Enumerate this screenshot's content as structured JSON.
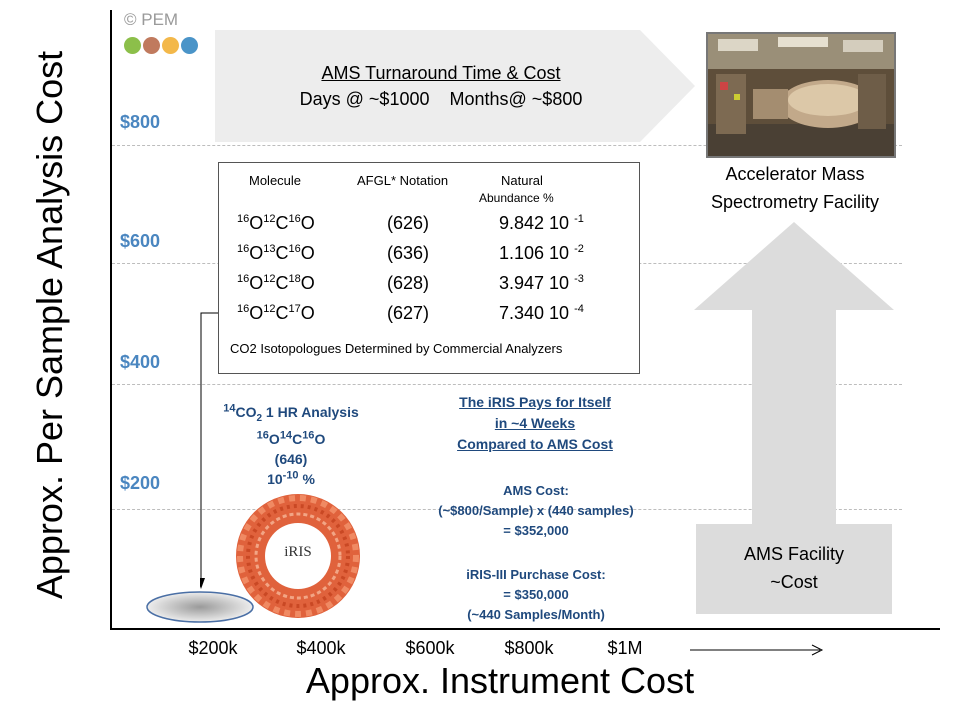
{
  "copyright": "© PEM",
  "logo_dot_colors": [
    "#8cbf4a",
    "#c07a5e",
    "#f3b84a",
    "#4a94c8"
  ],
  "y_axis": {
    "label": "Approx. Per Sample Analysis Cost",
    "ticks": [
      "$800",
      "$600",
      "$400",
      "$200"
    ],
    "tick_color": "#4a86c0"
  },
  "x_axis": {
    "label": "Approx. Instrument Cost",
    "ticks": [
      "$200k",
      "$400k",
      "$600k",
      "$800k",
      "$1M"
    ]
  },
  "banner": {
    "title": "AMS Turnaround Time & Cost",
    "subtitle": "Days @ ~$1000    Months@ ~$800"
  },
  "facility": {
    "line1": "Accelerator Mass",
    "line2": "Spectrometry Facility"
  },
  "ams_box": {
    "line1": "AMS Facility",
    "line2": "~Cost"
  },
  "isotope_table": {
    "headers": {
      "molecule": "Molecule",
      "notation": "AFGL* Notation",
      "abundance_1": "Natural",
      "abundance_2": "Abundance %"
    },
    "rows": [
      {
        "m1": "16",
        "m2": "12",
        "m3": "16",
        "notation": "(626)",
        "abundance": "9.842 10",
        "exp": "-1"
      },
      {
        "m1": "16",
        "m2": "13",
        "m3": "16",
        "notation": "(636)",
        "abundance": "1.106 10",
        "exp": "-2"
      },
      {
        "m1": "16",
        "m2": "12",
        "m3": "18",
        "notation": "(628)",
        "abundance": "3.947 10",
        "exp": "-3"
      },
      {
        "m1": "16",
        "m2": "12",
        "m3": "17",
        "notation": "(627)",
        "abundance": "7.340 10",
        "exp": "-4"
      }
    ],
    "caption": "CO2 Isotopologues Determined by Commercial Analyzers"
  },
  "radiocarbon": {
    "sup": "14",
    "line1_a": "CO",
    "line1_sub": "2",
    "line1_b": " 1 HR Analysis",
    "m1": "16",
    "m2": "14",
    "m3": "16",
    "notation": "(646)",
    "abundance": "10",
    "abundance_exp": "-10",
    "abundance_unit": " %"
  },
  "iris_logo_text": "iRIS",
  "payback": {
    "title1": "The iRIS Pays for Itself",
    "title2": "in ~4 Weeks",
    "title3": "Compared to AMS Cost",
    "ams_label": "AMS Cost:",
    "ams_calc": "(~$800/Sample) x (440 samples)",
    "ams_total": "= $352,000",
    "iris_label": "iRIS-III Purchase Cost:",
    "iris_total": "= $350,000",
    "iris_rate": "(~440 Samples/Month)"
  }
}
